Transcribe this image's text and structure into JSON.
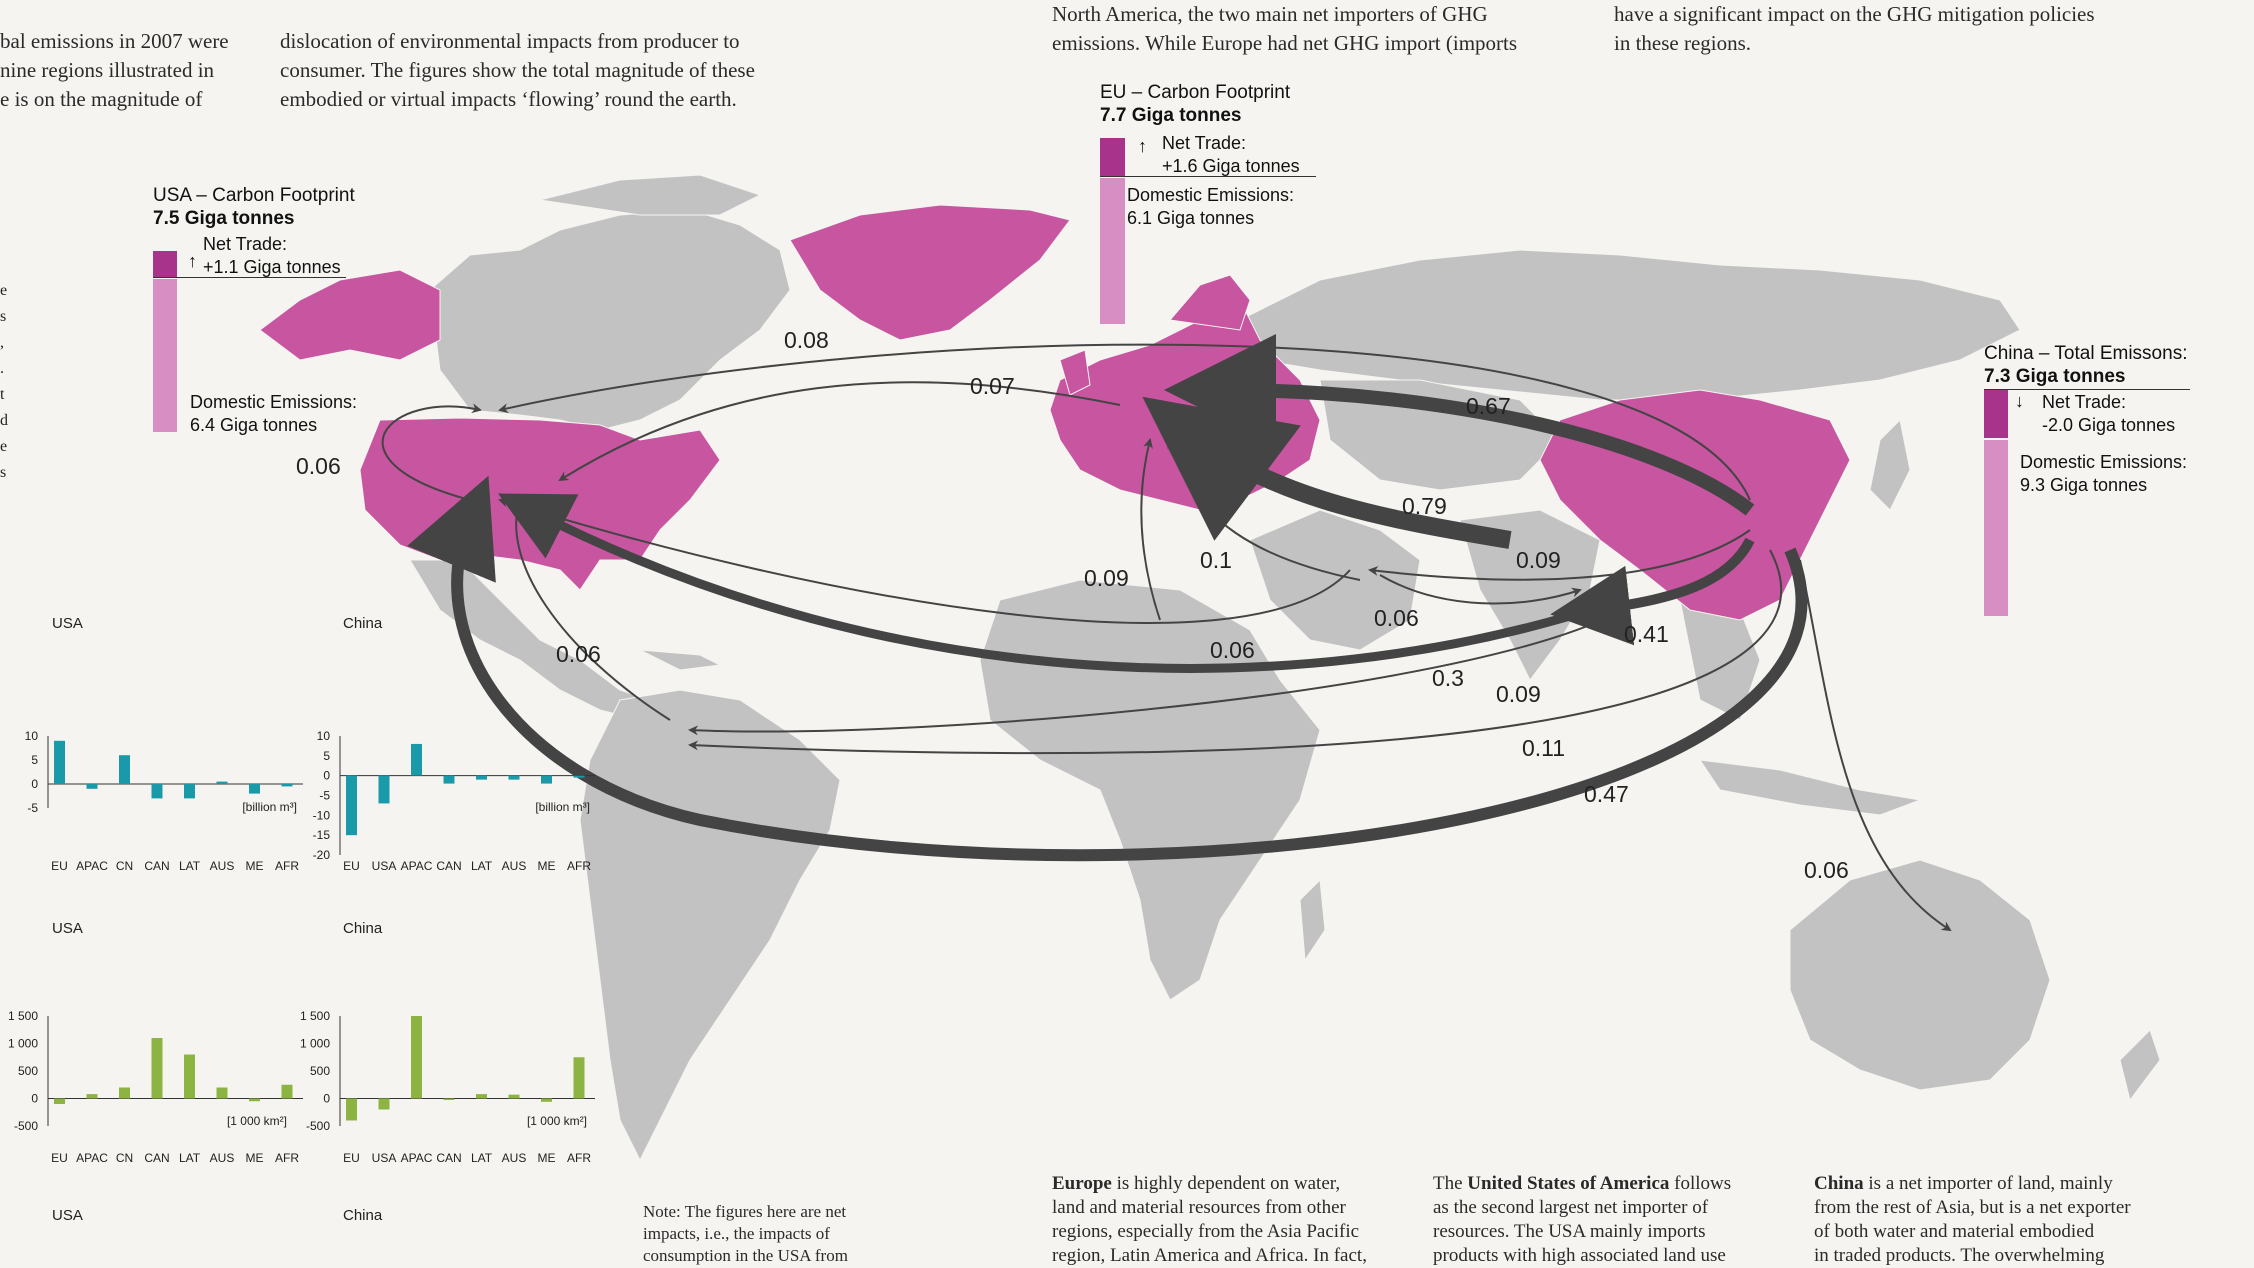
{
  "top_text": {
    "col1": [
      "bal emissions in 2007 were",
      "nine regions illustrated in",
      "e is on the magnitude of"
    ],
    "col2": [
      "dislocation of environmental impacts from producer to",
      "consumer. The figures show the total magnitude of these",
      "embodied or virtual impacts ‘flowing’ round the earth."
    ],
    "col3": [
      "North America, the two main net importers of GHG",
      "emissions. While Europe had net GHG import (imports"
    ],
    "col4": [
      "have a significant impact on the GHG mitigation policies",
      "in these regions."
    ]
  },
  "left_fragments": [
    "e",
    "s",
    ",",
    ".",
    "t",
    "d",
    "e",
    "s"
  ],
  "footprints": {
    "usa": {
      "title": "USA – Carbon Footprint",
      "total": "7.5 Giga tonnes",
      "net_label": "Net Trade:",
      "net_value": "+1.1 Giga tonnes",
      "dom_label": "Domestic Emissions:",
      "dom_value": "6.4 Giga tonnes"
    },
    "eu": {
      "title": "EU – Carbon Footprint",
      "total": "7.7 Giga tonnes",
      "net_label": "Net Trade:",
      "net_value": "+1.6 Giga tonnes",
      "dom_label": "Domestic Emissions:",
      "dom_value": "6.1 Giga tonnes"
    },
    "china": {
      "title": "China – Total Emissons:",
      "total": "7.3 Giga tonnes",
      "net_label": "Net Trade:",
      "net_value": "-2.0 Giga tonnes",
      "dom_label": "Domestic Emissions:",
      "dom_value": "9.3 Giga tonnes"
    }
  },
  "flows": [
    {
      "label": "0.08"
    },
    {
      "label": "0.07"
    },
    {
      "label": "0.06"
    },
    {
      "label": "0.67"
    },
    {
      "label": "0.79"
    },
    {
      "label": "0.09"
    },
    {
      "label": "0.1"
    },
    {
      "label": "0.09"
    },
    {
      "label": "0.06"
    },
    {
      "label": "0.06"
    },
    {
      "label": "0.41"
    },
    {
      "label": "0.06"
    },
    {
      "label": "0.3"
    },
    {
      "label": "0.09"
    },
    {
      "label": "0.11"
    },
    {
      "label": "0.47"
    },
    {
      "label": "0.06"
    }
  ],
  "region_labels": {
    "usa1": "USA",
    "china1": "China",
    "usa2": "USA",
    "china2": "China",
    "usa3": "USA",
    "china3": "China"
  },
  "colors": {
    "highlight": "#c755a0",
    "land": "#c2c2c2",
    "ocean": "#f5f4f0",
    "arrow": "#444444",
    "water_bar": "#1a9aa8",
    "land_bar": "#8db443",
    "net_bar": "#a8338a",
    "dom_bar": "#d78ec3"
  },
  "chart_data": [
    {
      "type": "bar",
      "title": "USA",
      "unit": "[billion m³]",
      "categories": [
        "EU",
        "APAC",
        "CN",
        "CAN",
        "LAT",
        "AUS",
        "ME",
        "AFR"
      ],
      "values": [
        9,
        -1,
        6,
        -3,
        -3,
        0.5,
        -2,
        -0.5
      ],
      "ylim": [
        -5,
        10
      ],
      "yticks": [
        "10",
        "5",
        "0",
        "-5"
      ]
    },
    {
      "type": "bar",
      "title": "China",
      "unit": "[billion m³]",
      "categories": [
        "EU",
        "USA",
        "APAC",
        "CAN",
        "LAT",
        "AUS",
        "ME",
        "AFR"
      ],
      "values": [
        -15,
        -7,
        8,
        -2,
        -1,
        -1,
        -2,
        -0.5
      ],
      "ylim": [
        -20,
        10
      ],
      "yticks": [
        "10",
        "5",
        "0",
        "-5",
        "-10",
        "-15",
        "-20"
      ]
    },
    {
      "type": "bar",
      "title": "USA",
      "unit": "[1 000 km²]",
      "categories": [
        "EU",
        "APAC",
        "CN",
        "CAN",
        "LAT",
        "AUS",
        "ME",
        "AFR"
      ],
      "values": [
        -100,
        80,
        200,
        1100,
        800,
        200,
        -50,
        250
      ],
      "ylim": [
        -500,
        1500
      ],
      "yticks": [
        "1 500",
        "1 000",
        "500",
        "0",
        "-500"
      ]
    },
    {
      "type": "bar",
      "title": "China",
      "unit": "[1 000 km²]",
      "categories": [
        "EU",
        "USA",
        "APAC",
        "CAN",
        "LAT",
        "AUS",
        "ME",
        "AFR"
      ],
      "values": [
        -400,
        -200,
        1500,
        -20,
        80,
        70,
        -60,
        750
      ],
      "ylim": [
        -500,
        1500
      ],
      "yticks": [
        "1 500",
        "1 000",
        "500",
        "0",
        "-500"
      ]
    }
  ],
  "bottom_text": {
    "europe": {
      "bold": "Europe",
      "lines": [
        " is highly dependent on water,",
        "land and material resources from other",
        "regions, especially from the Asia Pacific",
        "region, Latin America and Africa. In fact,"
      ]
    },
    "usa": {
      "pre": "The ",
      "bold": "United States of America",
      "lines": [
        " follows",
        "as the second largest net importer of",
        "resources. The USA mainly imports",
        "products with high associated land use"
      ]
    },
    "china": {
      "bold": "China",
      "lines": [
        " is a net importer of land, mainly",
        "from the rest of Asia, but is a net exporter",
        "of both water and material embodied",
        "in traded products. The overwhelming"
      ]
    }
  },
  "note": [
    "Note: The figures here are net",
    "impacts, i.e., the impacts of",
    "consumption in the USA from"
  ]
}
